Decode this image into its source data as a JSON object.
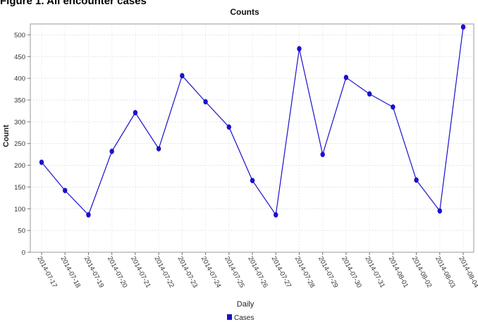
{
  "figure_heading": "Figure 1. All encounter cases",
  "chart_data": {
    "type": "line",
    "title": "Counts",
    "xlabel": "Daily",
    "ylabel": "Count",
    "ylim": [
      0,
      525
    ],
    "yticks": [
      0,
      50,
      100,
      150,
      200,
      250,
      300,
      350,
      400,
      450,
      500
    ],
    "grid": true,
    "legend_position": "bottom-center",
    "categories": [
      "2014-07-17",
      "2014-07-18",
      "2014-07-19",
      "2014-07-20",
      "2014-07-21",
      "2014-07-22",
      "2014-07-23",
      "2014-07-24",
      "2014-07-25",
      "2014-07-26",
      "2014-07-27",
      "2014-07-28",
      "2014-07-29",
      "2014-07-30",
      "2014-07-31",
      "2014-08-01",
      "2014-08-02",
      "2014-08-03",
      "2014-08-04"
    ],
    "series": [
      {
        "name": "Cases",
        "color": "#1a10cc",
        "values": [
          207,
          142,
          86,
          232,
          321,
          238,
          406,
          346,
          288,
          165,
          86,
          468,
          225,
          402,
          364,
          334,
          166,
          95,
          518
        ]
      }
    ]
  }
}
